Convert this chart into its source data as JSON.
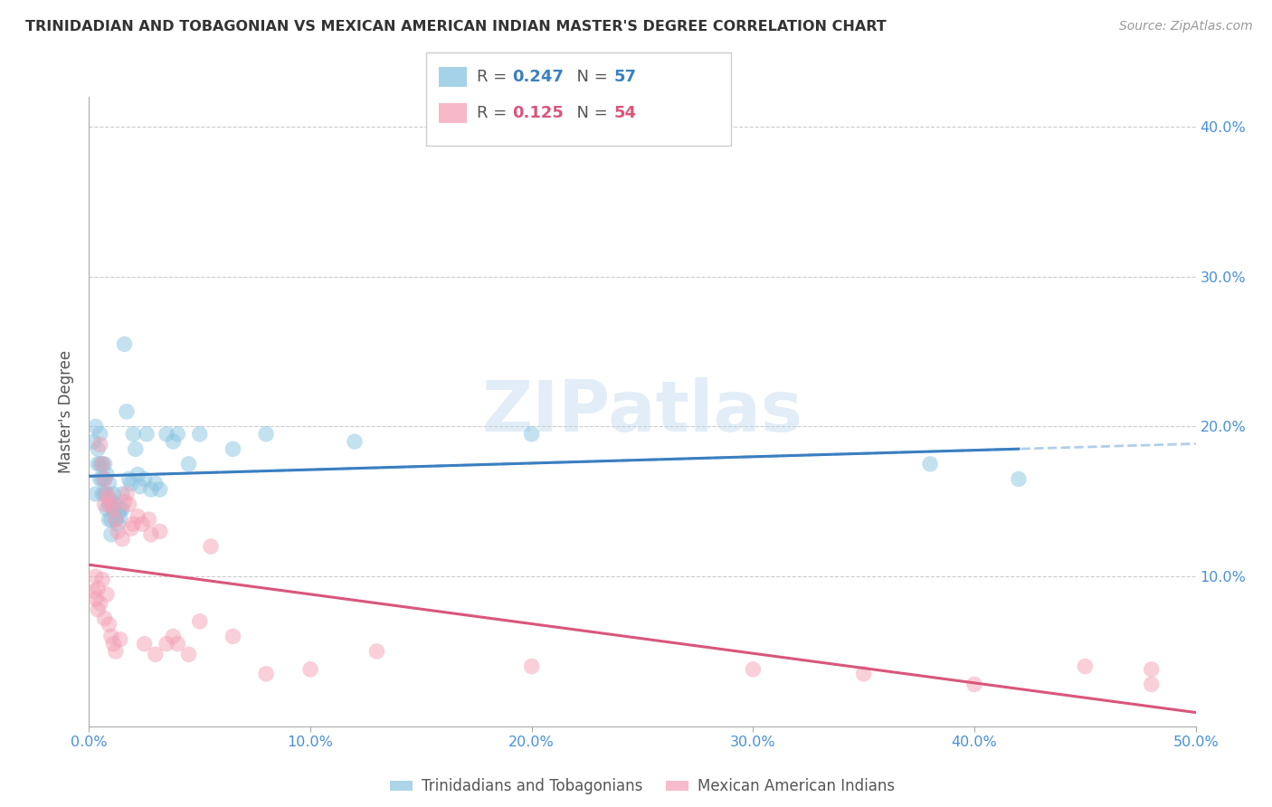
{
  "title": "TRINIDADIAN AND TOBAGONIAN VS MEXICAN AMERICAN INDIAN MASTER'S DEGREE CORRELATION CHART",
  "source": "Source: ZipAtlas.com",
  "ylabel": "Master's Degree",
  "xlim": [
    0.0,
    0.5
  ],
  "ylim": [
    0.0,
    0.42
  ],
  "legend_R1": "0.247",
  "legend_N1": "57",
  "legend_R2": "0.125",
  "legend_N2": "54",
  "blue_color": "#89c4e1",
  "pink_color": "#f4a0b5",
  "blue_line_color": "#3a7fc1",
  "pink_line_color": "#d9567b",
  "blue_dash_color": "#b0cfe8",
  "axis_label_color": "#4a90d9",
  "title_color": "#333333",
  "watermark": "ZIPatlas",
  "blue_scatter_x": [
    0.002,
    0.003,
    0.003,
    0.004,
    0.004,
    0.005,
    0.005,
    0.005,
    0.006,
    0.006,
    0.006,
    0.007,
    0.007,
    0.007,
    0.008,
    0.008,
    0.008,
    0.009,
    0.009,
    0.009,
    0.01,
    0.01,
    0.01,
    0.011,
    0.011,
    0.012,
    0.012,
    0.013,
    0.013,
    0.014,
    0.014,
    0.015,
    0.015,
    0.016,
    0.017,
    0.018,
    0.019,
    0.02,
    0.021,
    0.022,
    0.023,
    0.025,
    0.026,
    0.028,
    0.03,
    0.032,
    0.035,
    0.038,
    0.04,
    0.045,
    0.05,
    0.065,
    0.08,
    0.12,
    0.2,
    0.38,
    0.42
  ],
  "blue_scatter_y": [
    0.19,
    0.2,
    0.155,
    0.175,
    0.185,
    0.195,
    0.175,
    0.165,
    0.175,
    0.165,
    0.155,
    0.165,
    0.155,
    0.175,
    0.168,
    0.155,
    0.145,
    0.162,
    0.148,
    0.138,
    0.15,
    0.138,
    0.128,
    0.145,
    0.155,
    0.148,
    0.138,
    0.142,
    0.135,
    0.145,
    0.14,
    0.145,
    0.155,
    0.255,
    0.21,
    0.165,
    0.162,
    0.195,
    0.185,
    0.168,
    0.16,
    0.165,
    0.195,
    0.158,
    0.162,
    0.158,
    0.195,
    0.19,
    0.195,
    0.175,
    0.195,
    0.185,
    0.195,
    0.19,
    0.195,
    0.175,
    0.165
  ],
  "pink_scatter_x": [
    0.002,
    0.003,
    0.003,
    0.004,
    0.004,
    0.005,
    0.005,
    0.006,
    0.006,
    0.007,
    0.007,
    0.007,
    0.008,
    0.008,
    0.009,
    0.009,
    0.01,
    0.01,
    0.011,
    0.011,
    0.012,
    0.012,
    0.013,
    0.014,
    0.015,
    0.016,
    0.017,
    0.018,
    0.019,
    0.02,
    0.022,
    0.024,
    0.025,
    0.027,
    0.028,
    0.03,
    0.032,
    0.035,
    0.038,
    0.04,
    0.045,
    0.05,
    0.055,
    0.065,
    0.08,
    0.1,
    0.13,
    0.2,
    0.3,
    0.35,
    0.4,
    0.45,
    0.48,
    0.48
  ],
  "pink_scatter_y": [
    0.09,
    0.085,
    0.1,
    0.092,
    0.078,
    0.188,
    0.082,
    0.175,
    0.098,
    0.165,
    0.148,
    0.072,
    0.155,
    0.088,
    0.152,
    0.068,
    0.148,
    0.06,
    0.145,
    0.055,
    0.138,
    0.05,
    0.13,
    0.058,
    0.125,
    0.15,
    0.155,
    0.148,
    0.132,
    0.135,
    0.14,
    0.135,
    0.055,
    0.138,
    0.128,
    0.048,
    0.13,
    0.055,
    0.06,
    0.055,
    0.048,
    0.07,
    0.12,
    0.06,
    0.035,
    0.038,
    0.05,
    0.04,
    0.038,
    0.035,
    0.028,
    0.04,
    0.038,
    0.028
  ]
}
